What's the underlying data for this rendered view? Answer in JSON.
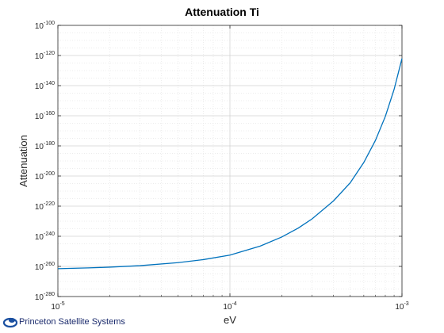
{
  "chart_data": {
    "type": "line",
    "title": "Attenuation Ti",
    "xlabel": "eV",
    "ylabel": "Attenuation",
    "x_scale": "log",
    "y_scale": "log",
    "xlim": [
      1e-05,
      0.001
    ],
    "ylim": [
      1e-280,
      1e-100
    ],
    "x_ticks": [
      1e-05,
      0.0001,
      0.001
    ],
    "x_tick_labels": [
      {
        "base": "10",
        "exp": "-5"
      },
      {
        "base": "10",
        "exp": "-4"
      },
      {
        "base": "10",
        "exp": "-3"
      }
    ],
    "y_tick_labels": [
      {
        "base": "10",
        "exp": "-100",
        "value_exp": -100
      },
      {
        "base": "10",
        "exp": "-120",
        "value_exp": -120
      },
      {
        "base": "10",
        "exp": "-140",
        "value_exp": -140
      },
      {
        "base": "10",
        "exp": "-160",
        "value_exp": -160
      },
      {
        "base": "10",
        "exp": "-180",
        "value_exp": -180
      },
      {
        "base": "10",
        "exp": "-200",
        "value_exp": -200
      },
      {
        "base": "10",
        "exp": "-220",
        "value_exp": -220
      },
      {
        "base": "10",
        "exp": "-240",
        "value_exp": -240
      },
      {
        "base": "10",
        "exp": "-260",
        "value_exp": -260
      },
      {
        "base": "10",
        "exp": "-280",
        "value_exp": -280
      }
    ],
    "grid": true,
    "line_color": "#0072BD",
    "series": [
      {
        "x": [
          1e-05,
          1.5e-05,
          2e-05,
          3e-05,
          5e-05,
          7e-05,
          0.0001,
          0.00015,
          0.0002,
          0.00025,
          0.0003,
          0.0004,
          0.0005,
          0.0006,
          0.0007,
          0.0008,
          0.0009,
          0.001
        ],
        "y_log10": [
          -261.5,
          -261.0,
          -260.5,
          -259.5,
          -257.5,
          -255.5,
          -252.5,
          -246.5,
          -240.5,
          -234.5,
          -228.5,
          -216.5,
          -204.5,
          -191.0,
          -176.5,
          -160.5,
          -142.5,
          -122.0
        ]
      }
    ]
  },
  "logo": {
    "text": "Princeton Satellite Systems"
  },
  "colors": {
    "axis": "#262626",
    "grid": "#d9d9d9",
    "logo_blue": "#1a4fa0"
  }
}
